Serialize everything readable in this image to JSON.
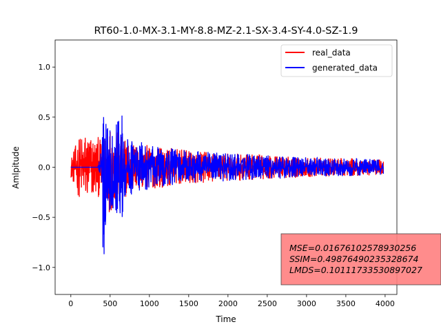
{
  "chart_data": {
    "type": "line",
    "title": "RT60-1.0-MX-3.1-MY-8.8-MZ-2.1-SX-3.4-SY-4.0-SZ-1.9",
    "xlabel": "Time",
    "ylabel": "Amlpitude",
    "xlim": [
      -200,
      4150
    ],
    "ylim": [
      -1.27,
      1.27
    ],
    "xticks": [
      0,
      500,
      1000,
      1500,
      2000,
      2500,
      3000,
      3500,
      4000
    ],
    "xtick_labels": [
      "0",
      "500",
      "1000",
      "1500",
      "2000",
      "2500",
      "3000",
      "3500",
      "4000"
    ],
    "yticks": [
      -1.0,
      -0.5,
      0.0,
      0.5,
      1.0
    ],
    "ytick_labels": [
      "−1.0",
      "−0.5",
      "0.0",
      "0.5",
      "1.0"
    ],
    "grid": false,
    "legend_placement": "upper right",
    "series": [
      {
        "name": "real_data",
        "color": "#ff0000",
        "envelope": {
          "x": [
            0,
            50,
            100,
            150,
            200,
            250,
            300,
            350,
            380,
            420,
            450,
            500,
            600,
            700,
            800,
            1000,
            1200,
            1500,
            2000,
            2500,
            3000,
            3500,
            3980
          ],
          "amp": [
            0.1,
            0.2,
            0.3,
            0.35,
            0.37,
            0.34,
            0.32,
            0.3,
            0.28,
            0.3,
            0.45,
            0.45,
            0.35,
            0.3,
            0.25,
            0.22,
            0.2,
            0.17,
            0.14,
            0.12,
            0.1,
            0.09,
            0.08
          ]
        }
      },
      {
        "name": "generated_data",
        "color": "#0000ff",
        "envelope": {
          "x": [
            0,
            340,
            360,
            400,
            410,
            420,
            440,
            460,
            500,
            550,
            650,
            700,
            800,
            1000,
            1200,
            1500,
            2000,
            2500,
            3000,
            3500,
            3980
          ],
          "amp": [
            0.0,
            0.0,
            0.08,
            0.25,
            1.15,
            1.16,
            0.6,
            0.45,
            0.45,
            0.4,
            0.6,
            0.3,
            0.28,
            0.22,
            0.2,
            0.17,
            0.14,
            0.12,
            0.1,
            0.09,
            0.08
          ]
        }
      }
    ],
    "annotation": {
      "lines": [
        "MSE=0.01676102578930256",
        "SSIM=0.49876490235328674",
        "LMDS=0.10111733530897027"
      ],
      "box_color": "#ff7f7f"
    }
  }
}
